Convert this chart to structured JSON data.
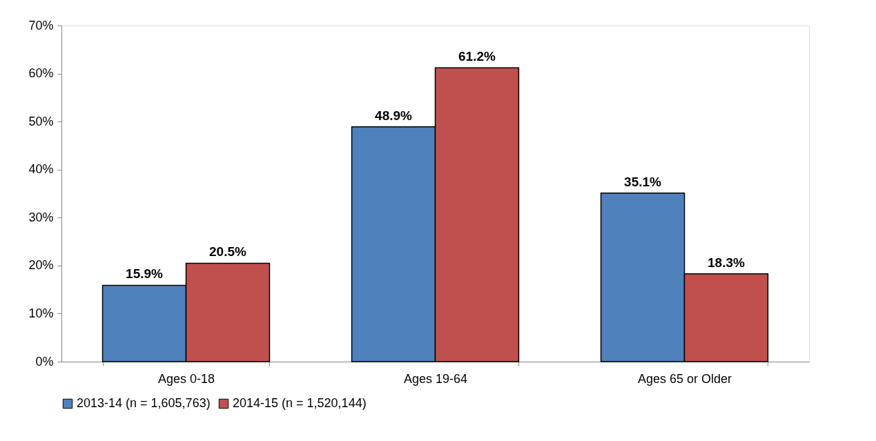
{
  "chart_data": {
    "type": "bar",
    "categories": [
      "Ages 0-18",
      "Ages 19-64",
      "Ages 65 or Older"
    ],
    "series": [
      {
        "name": "2013-14 (n = 1,605,763)",
        "color": "#4f81bd",
        "values": [
          15.9,
          48.9,
          35.1
        ]
      },
      {
        "name": "2014-15 (n = 1,520,144)",
        "color": "#c0504d",
        "values": [
          20.5,
          61.2,
          18.3
        ]
      }
    ],
    "ylim": [
      0,
      70
    ],
    "yticks": [
      {
        "value": 0,
        "label": "0%"
      },
      {
        "value": 10,
        "label": "10%"
      },
      {
        "value": 20,
        "label": "20%"
      },
      {
        "value": 30,
        "label": "30%"
      },
      {
        "value": 40,
        "label": "40%"
      },
      {
        "value": 50,
        "label": "50%"
      },
      {
        "value": 60,
        "label": "60%"
      },
      {
        "value": 70,
        "label": "70%"
      }
    ],
    "value_labels": [
      [
        "15.9%",
        "48.9%",
        "35.1%"
      ],
      [
        "20.5%",
        "61.2%",
        "18.3%"
      ]
    ],
    "legend": "bottom",
    "grid": false
  }
}
